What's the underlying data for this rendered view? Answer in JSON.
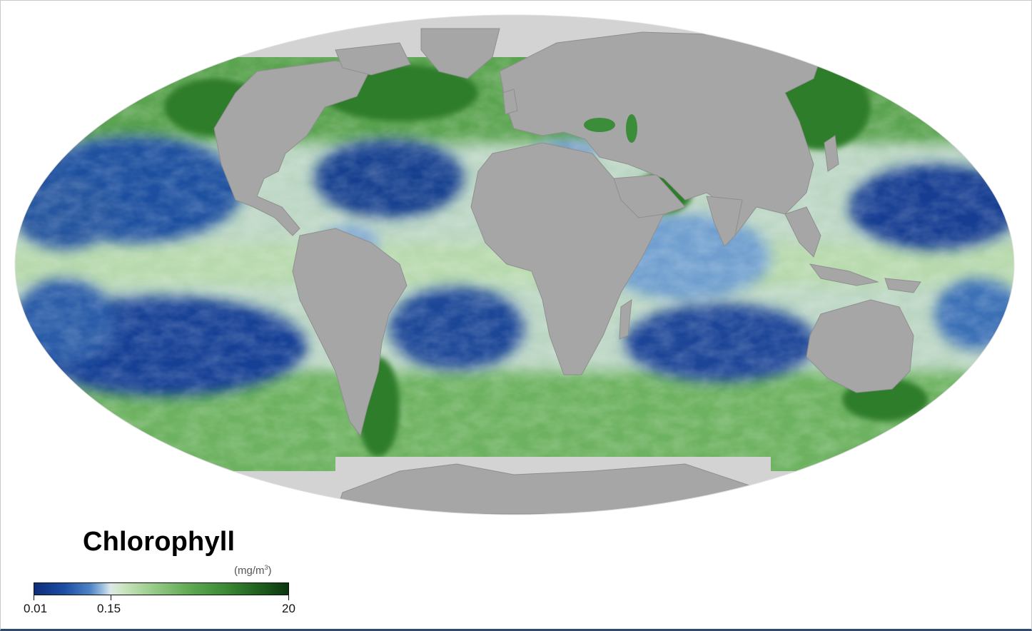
{
  "legend": {
    "title": "Chlorophyll",
    "unit_prefix": "(mg/m",
    "unit_sup": "3",
    "unit_suffix": ")",
    "ticks": [
      "0.01",
      "0.15",
      "20"
    ]
  },
  "colors": {
    "land": "#a6a6a6",
    "ice": "#d2d2d2",
    "ocean_low": "#173e92",
    "ocean_mid": "#cfdfe6",
    "ocean_high": "#3d8f3a",
    "background": "#ffffff"
  },
  "map": {
    "projection": "Mollweide",
    "variable": "Chlorophyll concentration"
  }
}
